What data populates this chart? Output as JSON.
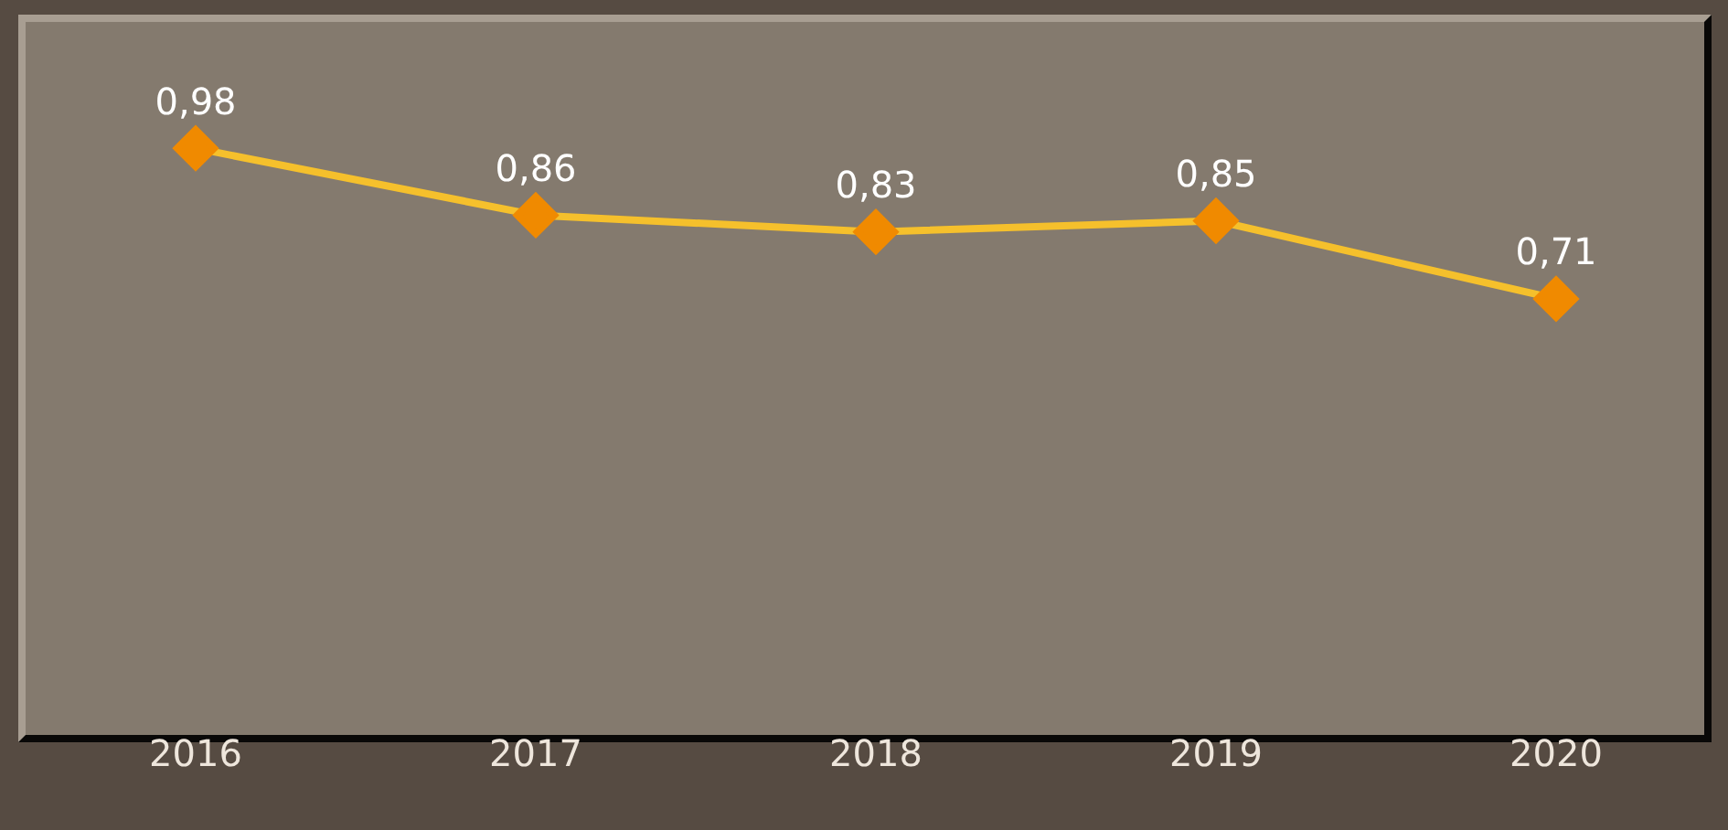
{
  "chart_data": {
    "type": "line",
    "categories": [
      "2016",
      "2017",
      "2018",
      "2019",
      "2020"
    ],
    "series": [
      {
        "color": "#f5c02c",
        "colors": [
          "#f08a00",
          "#f08a00",
          "#f08a00",
          "#f08a00",
          "#f08a00"
        ],
        "values": [
          0.98,
          0.86,
          0.83,
          0.85,
          0.71
        ],
        "value_labels": [
          "0,98",
          "0,86",
          "0,83",
          "0,85",
          "0,71"
        ]
      }
    ],
    "marker": "diamond",
    "grid": false,
    "legend": false,
    "tick_labels": "x"
  }
}
